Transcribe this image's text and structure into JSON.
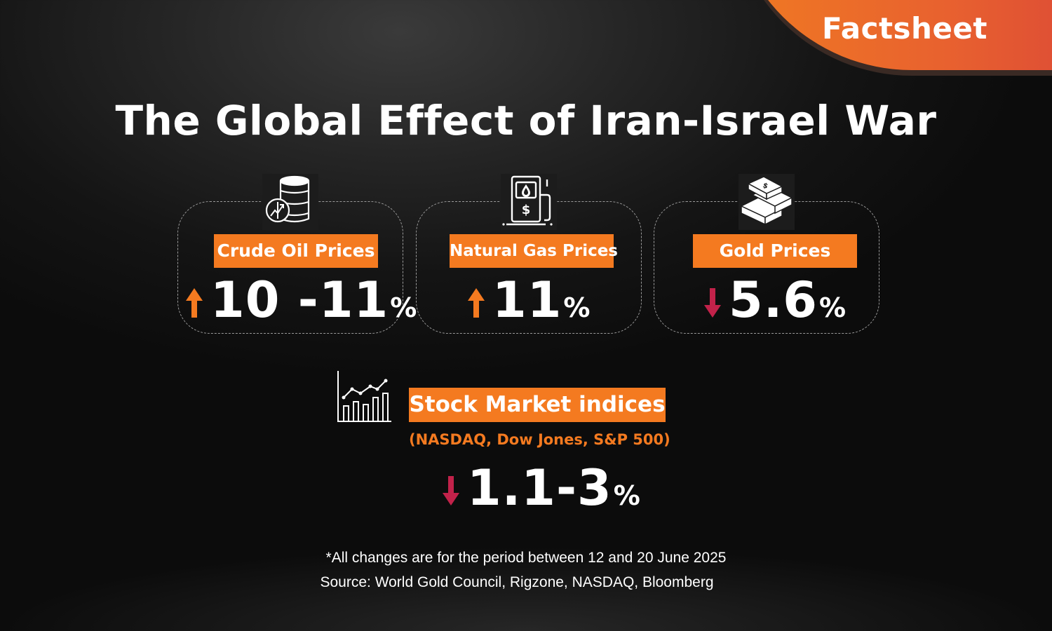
{
  "badge": {
    "label": "Factsheet"
  },
  "title": "The Global Effect of Iran-Israel War",
  "cards": [
    {
      "label": "Crude Oil Prices",
      "value": "10 -11",
      "unit": "%",
      "direction": "up",
      "icon": "oil-barrel-icon"
    },
    {
      "label": "Natural Gas Prices",
      "value": "11",
      "unit": "%",
      "direction": "up",
      "icon": "gas-pump-icon"
    },
    {
      "label": "Gold Prices",
      "value": "5.6",
      "unit": "%",
      "direction": "down",
      "icon": "gold-bars-icon"
    }
  ],
  "stock": {
    "label": "Stock Market indices",
    "subtitle": "(NASDAQ, Dow Jones, S&P 500)",
    "value": "1.1-3",
    "unit": "%",
    "direction": "down",
    "icon": "stock-chart-icon"
  },
  "footnotes": {
    "period": "*All changes are for the period between 12 and 20 June 2025",
    "source": "Source: World Gold Council, Rigzone, NASDAQ, Bloomberg"
  },
  "colors": {
    "accent": "#f47a20",
    "up_arrow": "#f47a20",
    "down_arrow": "#c2224a",
    "background": "#1a1a1a"
  }
}
